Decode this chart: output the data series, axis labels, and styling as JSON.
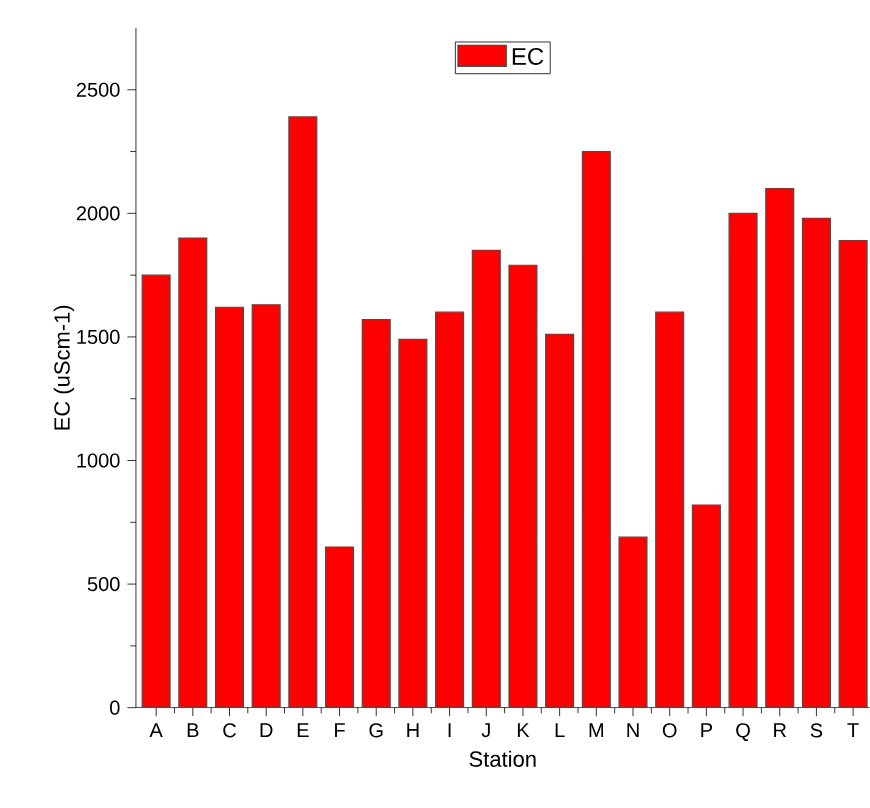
{
  "chart_data": {
    "type": "bar",
    "xlabel": "Station",
    "ylabel": "EC (uScm-1)",
    "categories": [
      "A",
      "B",
      "C",
      "D",
      "E",
      "F",
      "G",
      "H",
      "I",
      "J",
      "K",
      "L",
      "M",
      "N",
      "O",
      "P",
      "Q",
      "R",
      "S",
      "T"
    ],
    "series": [
      {
        "name": "EC",
        "color": "#ff0000",
        "values": [
          1750,
          1900,
          1620,
          1630,
          2390,
          650,
          1570,
          1490,
          1600,
          1850,
          1790,
          1510,
          2250,
          690,
          1600,
          820,
          2000,
          2100,
          1980,
          1890
        ]
      }
    ],
    "ylim": [
      0,
      2750
    ],
    "yticks": [
      0,
      500,
      1000,
      1500,
      2000,
      2500
    ],
    "grid": false,
    "legend": "top"
  }
}
